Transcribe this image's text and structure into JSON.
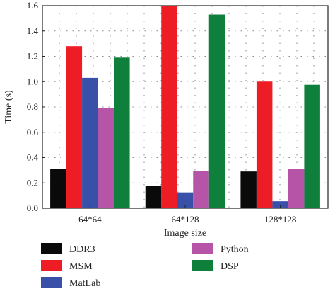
{
  "chart_data": {
    "type": "bar",
    "categories": [
      "64*64",
      "64*128",
      "128*128"
    ],
    "series": [
      {
        "name": "DDR3",
        "color": "#0a0a0a",
        "values": [
          0.31,
          0.175,
          0.29
        ]
      },
      {
        "name": "MSM",
        "color": "#ee1c25",
        "values": [
          1.28,
          1.6,
          1.0
        ]
      },
      {
        "name": "MatLab",
        "color": "#3850a8",
        "values": [
          1.03,
          0.125,
          0.055
        ]
      },
      {
        "name": "Python",
        "color": "#b655a8",
        "values": [
          0.79,
          0.295,
          0.31
        ]
      },
      {
        "name": "DSP",
        "color": "#0f7f3c",
        "values": [
          1.19,
          1.53,
          0.975
        ]
      }
    ],
    "xlabel": "Image size",
    "ylabel": "Time (s)",
    "ylim": [
      0,
      1.6
    ],
    "yticks": [
      "0.0",
      "0.2",
      "0.4",
      "0.6",
      "0.8",
      "1.0",
      "1.2",
      "1.4",
      "1.6"
    ],
    "grid": true,
    "legend": {
      "placement": "bottom",
      "columns": [
        [
          "DDR3",
          "MSM",
          "MatLab"
        ],
        [
          "Python",
          "DSP"
        ]
      ]
    }
  }
}
